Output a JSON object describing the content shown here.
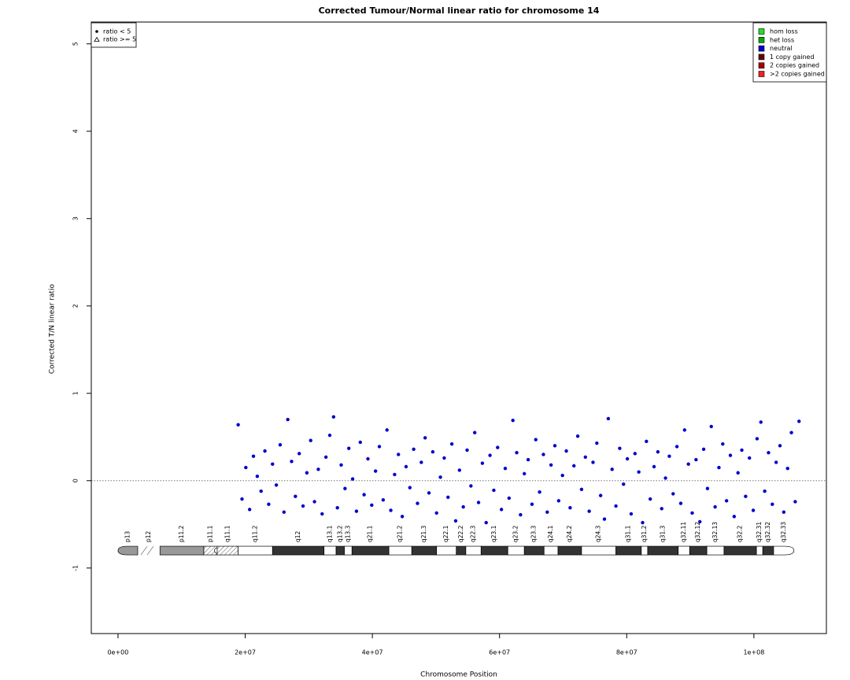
{
  "chart_data": {
    "type": "scatter",
    "title": "Corrected Tumour/Normal linear ratio for chromosome  14",
    "x_label": "Chromosome Position",
    "y_label": "Corrected T/N linear ratio",
    "xlim": [
      -4200000,
      111400000
    ],
    "ylim": [
      -1.75,
      5.25
    ],
    "xticks": [
      {
        "value": 0,
        "label": "0e+00"
      },
      {
        "value": 20000000,
        "label": "2e+07"
      },
      {
        "value": 40000000,
        "label": "4e+07"
      },
      {
        "value": 60000000,
        "label": "6e+07"
      },
      {
        "value": 80000000,
        "label": "8e+07"
      },
      {
        "value": 100000000,
        "label": "1e+08"
      }
    ],
    "yticks": [
      -1,
      0,
      1,
      2,
      3,
      4,
      5
    ],
    "reference_line": 0,
    "shape_legend": [
      {
        "label": "ratio < 5",
        "marker": "dot"
      },
      {
        "label": "ratio >= 5",
        "marker": "triangle"
      }
    ],
    "legend": [
      {
        "name": "hom loss",
        "color": "#22dd22"
      },
      {
        "name": "het loss",
        "color": "#00aa00"
      },
      {
        "name": "neutral",
        "color": "#0000cc"
      },
      {
        "name": "1 copy gained",
        "color": "#660000"
      },
      {
        "name": "2 copies gained",
        "color": "#aa0000"
      },
      {
        "name": ">2 copies gained",
        "color": "#ee2222"
      }
    ],
    "points": {
      "color": "#0000cc",
      "x": [
        18900000,
        19500000,
        20100000,
        20700000,
        21300000,
        21900000,
        22500000,
        23100000,
        23700000,
        24300000,
        24900000,
        25500000,
        26100000,
        26700000,
        27300000,
        27900000,
        28500000,
        29100000,
        29700000,
        30300000,
        30900000,
        31500000,
        32100000,
        32700000,
        33300000,
        33900000,
        34500000,
        35100000,
        35700000,
        36300000,
        36900000,
        37500000,
        38100000,
        38700000,
        39300000,
        39900000,
        40500000,
        41100000,
        41700000,
        42300000,
        42900000,
        43500000,
        44100000,
        44700000,
        45300000,
        45900000,
        46500000,
        47100000,
        47700000,
        48300000,
        48900000,
        49500000,
        50100000,
        50700000,
        51300000,
        51900000,
        52500000,
        53100000,
        53700000,
        54300000,
        54900000,
        55500000,
        56100000,
        56700000,
        57300000,
        57900000,
        58500000,
        59100000,
        59700000,
        60300000,
        60900000,
        61500000,
        62100000,
        62700000,
        63300000,
        63900000,
        64500000,
        65100000,
        65700000,
        66300000,
        66900000,
        67500000,
        68100000,
        68700000,
        69300000,
        69900000,
        70500000,
        71100000,
        71700000,
        72300000,
        72900000,
        73500000,
        74100000,
        74700000,
        75300000,
        75900000,
        76500000,
        77100000,
        77700000,
        78300000,
        78900000,
        79500000,
        80100000,
        80700000,
        81300000,
        81900000,
        82500000,
        83100000,
        83700000,
        84300000,
        84900000,
        85500000,
        86100000,
        86700000,
        87300000,
        87900000,
        88500000,
        89100000,
        89700000,
        90300000,
        90900000,
        91500000,
        92100000,
        92700000,
        93300000,
        93900000,
        94500000,
        95100000,
        95700000,
        96300000,
        96900000,
        97500000,
        98100000,
        98700000,
        99300000,
        99900000,
        100500000,
        101100000,
        101700000,
        102300000,
        102900000,
        103500000,
        104100000,
        104700000,
        105300000,
        105900000,
        106500000,
        107100000
      ],
      "y": [
        0.64,
        -0.21,
        0.15,
        -0.33,
        0.28,
        0.05,
        -0.12,
        0.34,
        -0.27,
        0.19,
        -0.05,
        0.41,
        -0.36,
        0.7,
        0.22,
        -0.18,
        0.31,
        -0.29,
        0.09,
        0.46,
        -0.24,
        0.13,
        -0.38,
        0.27,
        0.52,
        0.73,
        -0.31,
        0.18,
        -0.09,
        0.37,
        0.02,
        -0.35,
        0.44,
        -0.16,
        0.25,
        -0.28,
        0.11,
        0.39,
        -0.22,
        0.58,
        -0.34,
        0.07,
        0.3,
        -0.41,
        0.16,
        -0.08,
        0.36,
        -0.26,
        0.21,
        0.49,
        -0.14,
        0.33,
        -0.37,
        0.04,
        0.26,
        -0.19,
        0.42,
        -0.46,
        0.12,
        -0.3,
        0.35,
        -0.06,
        0.55,
        -0.25,
        0.2,
        -0.48,
        0.29,
        -0.11,
        0.38,
        -0.33,
        0.14,
        -0.2,
        0.69,
        0.32,
        -0.39,
        0.08,
        0.24,
        -0.27,
        0.47,
        -0.13,
        0.3,
        -0.36,
        0.18,
        0.4,
        -0.23,
        0.06,
        0.34,
        -0.31,
        0.17,
        0.51,
        -0.1,
        0.27,
        -0.35,
        0.21,
        0.43,
        -0.17,
        -0.44,
        0.71,
        0.13,
        -0.29,
        0.37,
        -0.04,
        0.25,
        -0.38,
        0.31,
        0.1,
        -0.48,
        0.45,
        -0.21,
        0.16,
        0.33,
        -0.32,
        0.03,
        0.28,
        -0.15,
        0.39,
        -0.26,
        0.58,
        0.19,
        -0.37,
        0.24,
        -0.47,
        0.36,
        -0.09,
        0.62,
        -0.3,
        0.15,
        0.42,
        -0.23,
        0.29,
        -0.41,
        0.09,
        0.35,
        -0.18,
        0.26,
        -0.34,
        0.48,
        0.67,
        -0.12,
        0.32,
        -0.27,
        0.21,
        0.4,
        -0.36,
        0.14,
        0.55,
        -0.24,
        0.68
      ]
    },
    "ideogram": {
      "y": -0.8,
      "bands": [
        {
          "label": "p13",
          "start": 0,
          "end": 3100000,
          "stain": "gray"
        },
        {
          "label": "p12",
          "start": 3100000,
          "end": 6600000,
          "stain": "stalk"
        },
        {
          "label": "p11.2",
          "start": 6600000,
          "end": 13500000,
          "stain": "gray"
        },
        {
          "label": "p11.1",
          "start": 13500000,
          "end": 15600000,
          "stain": "acen"
        },
        {
          "label": "q11.1",
          "start": 15600000,
          "end": 18900000,
          "stain": "acen"
        },
        {
          "label": "q11.2",
          "start": 18900000,
          "end": 24300000,
          "stain": "white"
        },
        {
          "label": "q12",
          "start": 24300000,
          "end": 32400000,
          "stain": "black"
        },
        {
          "label": "q13.1",
          "start": 32400000,
          "end": 34300000,
          "stain": "white"
        },
        {
          "label": "q13.2",
          "start": 34300000,
          "end": 35600000,
          "stain": "black"
        },
        {
          "label": "q13.3",
          "start": 35600000,
          "end": 36800000,
          "stain": "white"
        },
        {
          "label": "q21.1",
          "start": 36800000,
          "end": 42600000,
          "stain": "black"
        },
        {
          "label": "q21.2",
          "start": 42600000,
          "end": 46200000,
          "stain": "white"
        },
        {
          "label": "q21.3",
          "start": 46200000,
          "end": 50100000,
          "stain": "black"
        },
        {
          "label": "q22.1",
          "start": 50100000,
          "end": 53200000,
          "stain": "white"
        },
        {
          "label": "q22.2",
          "start": 53200000,
          "end": 54700000,
          "stain": "black"
        },
        {
          "label": "q22.3",
          "start": 54700000,
          "end": 57100000,
          "stain": "white"
        },
        {
          "label": "q23.1",
          "start": 57100000,
          "end": 61300000,
          "stain": "black"
        },
        {
          "label": "q23.2",
          "start": 61300000,
          "end": 63900000,
          "stain": "white"
        },
        {
          "label": "q23.3",
          "start": 63900000,
          "end": 67000000,
          "stain": "black"
        },
        {
          "label": "q24.1",
          "start": 67000000,
          "end": 69200000,
          "stain": "white"
        },
        {
          "label": "q24.2",
          "start": 69200000,
          "end": 72900000,
          "stain": "black"
        },
        {
          "label": "q24.3",
          "start": 72900000,
          "end": 78300000,
          "stain": "white"
        },
        {
          "label": "q31.1",
          "start": 78300000,
          "end": 82300000,
          "stain": "black"
        },
        {
          "label": "q31.2",
          "start": 82300000,
          "end": 83300000,
          "stain": "white"
        },
        {
          "label": "q31.3",
          "start": 83300000,
          "end": 88100000,
          "stain": "black"
        },
        {
          "label": "q32.11",
          "start": 88100000,
          "end": 89900000,
          "stain": "white"
        },
        {
          "label": "q32.12",
          "start": 89900000,
          "end": 92600000,
          "stain": "black"
        },
        {
          "label": "q32.13",
          "start": 92600000,
          "end": 95300000,
          "stain": "white"
        },
        {
          "label": "q32.2",
          "start": 95300000,
          "end": 100400000,
          "stain": "black"
        },
        {
          "label": "q32.31",
          "start": 100400000,
          "end": 101400000,
          "stain": "white"
        },
        {
          "label": "q32.32",
          "start": 101400000,
          "end": 103100000,
          "stain": "black"
        },
        {
          "label": "q32.33",
          "start": 103100000,
          "end": 106300000,
          "stain": "white"
        }
      ]
    }
  }
}
